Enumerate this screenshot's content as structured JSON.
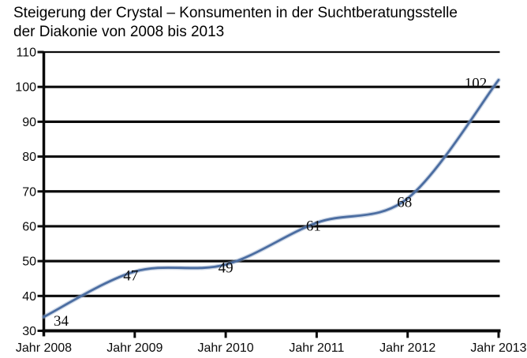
{
  "header": {
    "title_line1": "Steigerung der Crystal – Konsumenten in der Suchtberatungsstelle",
    "title_line2": "der Diakonie von 2008 bis 2013"
  },
  "chart_data": {
    "type": "line",
    "title": "Steigerung der Crystal – Konsumenten in der Suchtberatungsstelle der Diakonie von 2008 bis 2013",
    "categories": [
      "Jahr 2008",
      "Jahr 2009",
      "Jahr 2010",
      "Jahr 2011",
      "Jahr 2012",
      "Jahr 2013"
    ],
    "series": [
      {
        "values": [
          34,
          47,
          49,
          61,
          68,
          102
        ],
        "data_labels": [
          "34",
          "47",
          "49",
          "61",
          "68",
          "102"
        ]
      }
    ],
    "xlabel": "",
    "ylabel": "",
    "ylim": [
      30,
      110
    ],
    "yticks": [
      110,
      100,
      90,
      80,
      70,
      60,
      50,
      40,
      30
    ],
    "grid": "horizontal",
    "legend": "none",
    "line_smooth": true,
    "colors": {
      "line": "#4b6da1",
      "line_halo": "#92a9c9",
      "grid": "#0a0a0a",
      "axis": "#0a0a0a",
      "text": "#000000",
      "background": "#ffffff"
    }
  }
}
